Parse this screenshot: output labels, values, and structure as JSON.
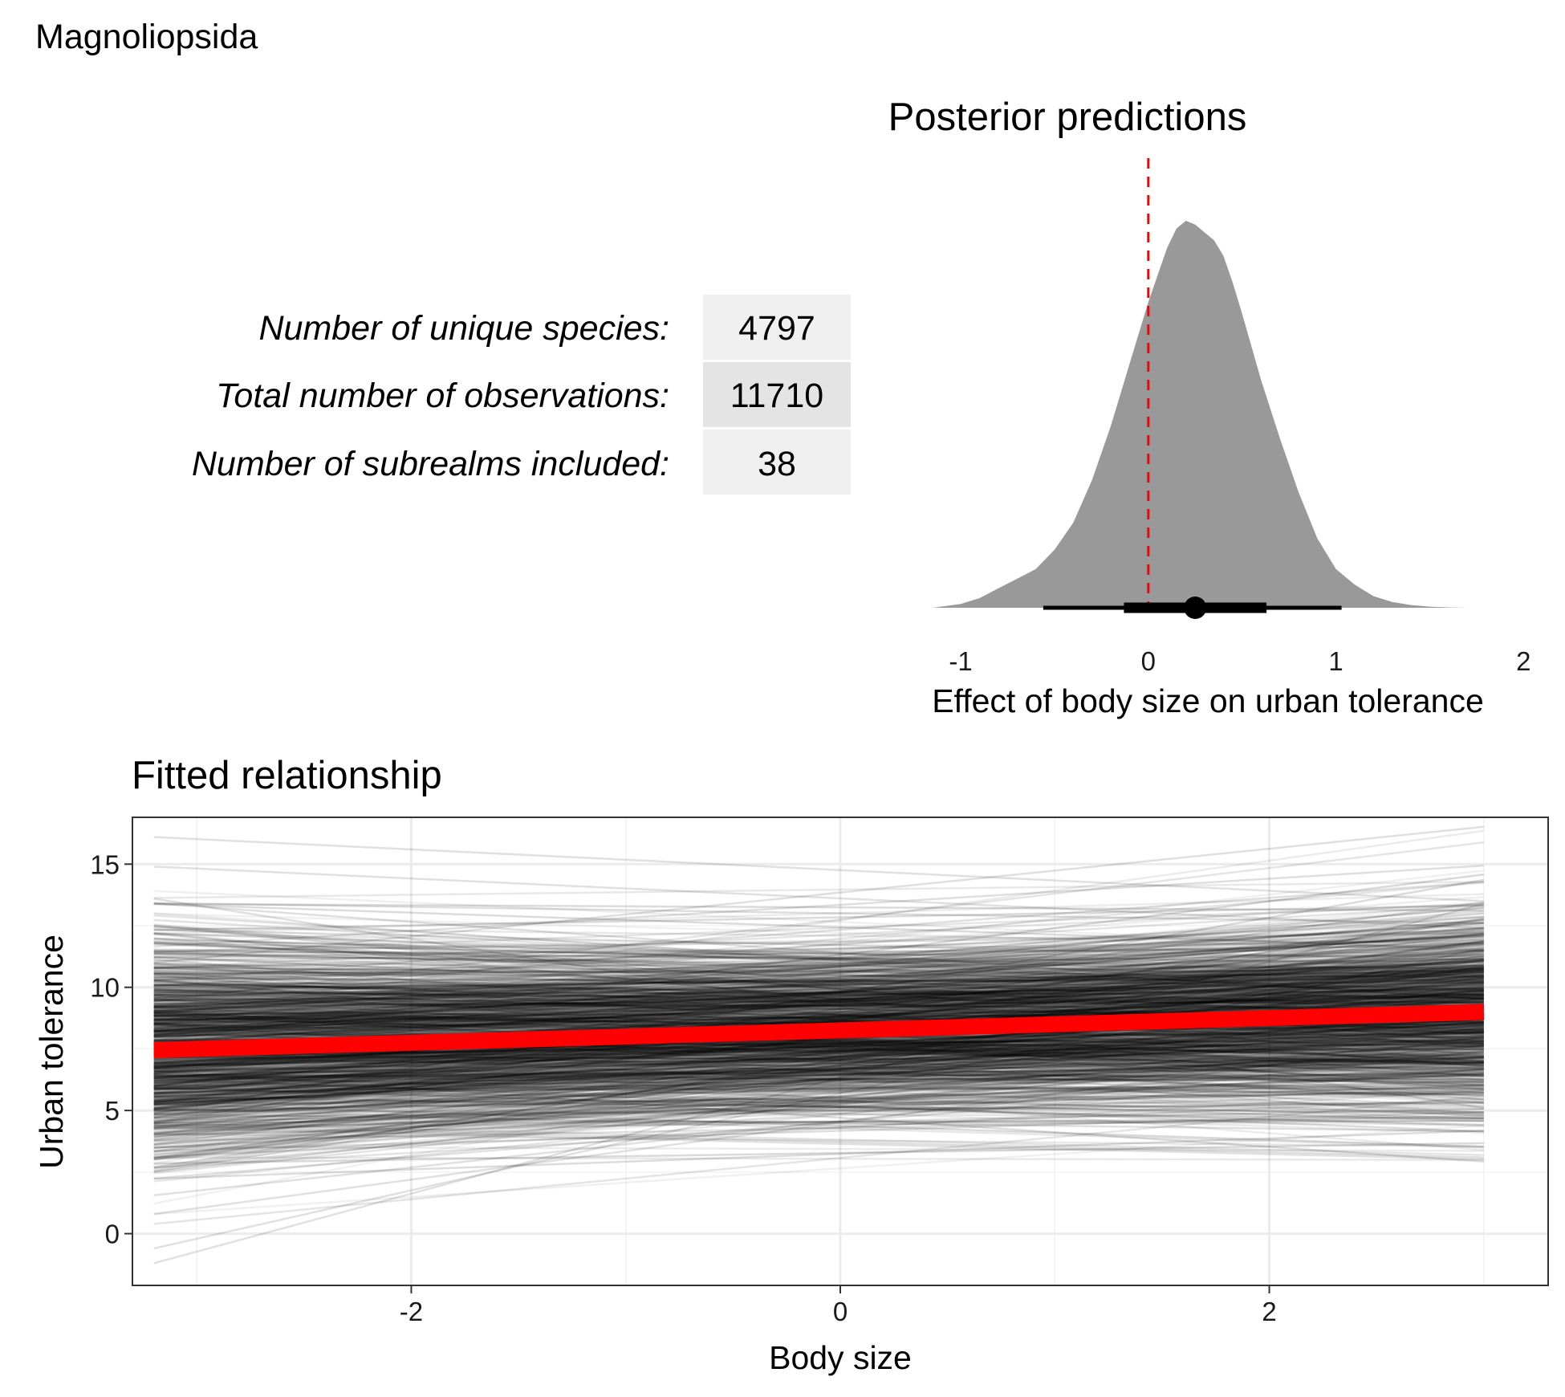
{
  "figure": {
    "title": "Magnoliopsida",
    "stats": {
      "rows": [
        {
          "label": "Number of unique species:",
          "value": "4797"
        },
        {
          "label": "Total number of observations:",
          "value": "11710"
        },
        {
          "label": "Number of subrealms included:",
          "value": "38"
        }
      ]
    }
  },
  "colors": {
    "density_fill": "#999999",
    "zero_line": "#ff0000",
    "fit_line": "#ff0000",
    "draw_line": "#000000",
    "grid": "#ebebeb",
    "table_cell": "#f0f0f0",
    "table_cell_alt": "#e4e4e4"
  },
  "chart_data": [
    {
      "type": "area",
      "title": "Posterior predictions",
      "xlabel": "Effect of body size on urban tolerance",
      "ylabel": "",
      "xlim": [
        -1.15,
        2.05
      ],
      "xticks": [
        -1,
        0,
        1,
        2
      ],
      "xtick_labels": [
        "-1",
        "0",
        "1",
        "2"
      ],
      "grid": false,
      "reference_line": {
        "x": 0,
        "style": "dashed"
      },
      "density": {
        "x": [
          -1.15,
          -1.0,
          -0.9,
          -0.8,
          -0.7,
          -0.6,
          -0.5,
          -0.4,
          -0.3,
          -0.2,
          -0.1,
          0.0,
          0.05,
          0.1,
          0.15,
          0.2,
          0.25,
          0.3,
          0.35,
          0.4,
          0.45,
          0.5,
          0.6,
          0.7,
          0.8,
          0.9,
          1.0,
          1.1,
          1.2,
          1.3,
          1.4,
          1.5,
          1.6,
          1.7,
          1.77
        ],
        "y": [
          0.0,
          0.01,
          0.025,
          0.05,
          0.075,
          0.1,
          0.15,
          0.22,
          0.33,
          0.47,
          0.63,
          0.79,
          0.86,
          0.93,
          0.98,
          1.0,
          0.99,
          0.97,
          0.95,
          0.91,
          0.84,
          0.76,
          0.59,
          0.44,
          0.3,
          0.18,
          0.1,
          0.06,
          0.03,
          0.015,
          0.007,
          0.003,
          0.001,
          0.0,
          0.0
        ]
      },
      "summary": {
        "point": 0.25,
        "interval_66": [
          -0.13,
          0.63
        ],
        "interval_95": [
          -0.56,
          1.03
        ]
      }
    },
    {
      "type": "line",
      "title": "Fitted relationship",
      "xlabel": "Body size",
      "ylabel": "Urban tolerance",
      "xlim": [
        -3.3,
        3.3
      ],
      "ylim": [
        -2.1,
        16.9
      ],
      "xticks": [
        -2,
        0,
        2
      ],
      "xtick_labels": [
        "-2",
        "0",
        "2"
      ],
      "yticks": [
        0,
        5,
        10,
        15
      ],
      "ytick_labels": [
        "0",
        "5",
        "10",
        "15"
      ],
      "grid": true,
      "x_range": [
        -3.2,
        3.0
      ],
      "fitted_line": {
        "x": [
          -3.2,
          3.0
        ],
        "y": [
          7.45,
          9.0
        ]
      },
      "posterior_draws": {
        "count": 1000,
        "mean_intercept": 8.25,
        "mean_slope": 0.25,
        "intercept_sd": 1.8,
        "slope_sd": 0.4,
        "extreme_lines": [
          {
            "x": [
              -3.2,
              3.0
            ],
            "y": [
              16.1,
              13.5
            ]
          },
          {
            "x": [
              -3.2,
              3.0
            ],
            "y": [
              14.9,
              12.4
            ]
          },
          {
            "x": [
              -3.2,
              3.0
            ],
            "y": [
              -1.2,
              13.4
            ]
          },
          {
            "x": [
              -3.2,
              3.0
            ],
            "y": [
              -0.6,
              11.6
            ]
          },
          {
            "x": [
              -3.2,
              3.0
            ],
            "y": [
              0.8,
              8.0
            ]
          },
          {
            "x": [
              -3.2,
              3.0
            ],
            "y": [
              13.6,
              5.1
            ]
          }
        ]
      }
    }
  ]
}
